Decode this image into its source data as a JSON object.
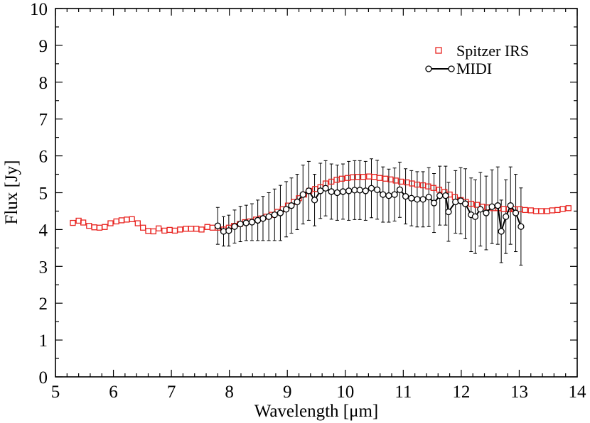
{
  "chart_data": {
    "type": "scatter",
    "xlabel": "Wavelength [μm]",
    "ylabel": "Flux [Jy]",
    "xlim": [
      5,
      14
    ],
    "ylim": [
      0,
      10
    ],
    "x_ticks": [
      "5",
      "6",
      "7",
      "8",
      "9",
      "10",
      "11",
      "12",
      "13",
      "14"
    ],
    "y_ticks": [
      "0",
      "1",
      "2",
      "3",
      "4",
      "5",
      "6",
      "7",
      "8",
      "9",
      "10"
    ],
    "legend": {
      "placement": "top-right"
    },
    "series": [
      {
        "name": "Spitzer IRS",
        "style": "open-square",
        "color": "#e8231f",
        "x": [
          5.3,
          5.4,
          5.48,
          5.58,
          5.67,
          5.76,
          5.85,
          5.95,
          6.05,
          6.14,
          6.23,
          6.32,
          6.42,
          6.51,
          6.6,
          6.69,
          6.78,
          6.88,
          6.97,
          7.06,
          7.15,
          7.25,
          7.34,
          7.43,
          7.52,
          7.62,
          7.71,
          7.8,
          7.9,
          7.99,
          8.08,
          8.18,
          8.27,
          8.36,
          8.46,
          8.55,
          8.64,
          8.73,
          8.83,
          8.92,
          9.01,
          9.11,
          9.2,
          9.29,
          9.38,
          9.48,
          9.57,
          9.66,
          9.76,
          9.85,
          9.94,
          10.04,
          10.13,
          10.22,
          10.31,
          10.41,
          10.5,
          10.59,
          10.69,
          10.78,
          10.87,
          10.96,
          11.06,
          11.15,
          11.24,
          11.34,
          11.43,
          11.52,
          11.62,
          11.71,
          11.8,
          11.89,
          11.99,
          12.08,
          12.17,
          12.27,
          12.36,
          12.45,
          12.55,
          12.64,
          12.73,
          12.82,
          12.92,
          13.01,
          13.1,
          13.2,
          13.29,
          13.38,
          13.48,
          13.57,
          13.66,
          13.75,
          13.85
        ],
        "y": [
          4.18,
          4.24,
          4.19,
          4.1,
          4.06,
          4.05,
          4.07,
          4.17,
          4.22,
          4.25,
          4.27,
          4.28,
          4.17,
          4.05,
          3.96,
          3.95,
          4.03,
          3.97,
          3.99,
          3.97,
          4.0,
          4.02,
          4.02,
          4.02,
          4.0,
          4.07,
          4.05,
          4.05,
          4.0,
          4.05,
          4.1,
          4.15,
          4.2,
          4.22,
          4.27,
          4.3,
          4.35,
          4.4,
          4.48,
          4.55,
          4.65,
          4.75,
          4.85,
          4.95,
          5.05,
          5.1,
          5.15,
          5.25,
          5.3,
          5.35,
          5.38,
          5.4,
          5.42,
          5.43,
          5.43,
          5.44,
          5.43,
          5.4,
          5.38,
          5.36,
          5.33,
          5.3,
          5.28,
          5.25,
          5.22,
          5.2,
          5.17,
          5.13,
          5.08,
          5.02,
          4.95,
          4.88,
          4.8,
          4.75,
          4.7,
          4.67,
          4.62,
          4.6,
          4.58,
          4.58,
          4.56,
          4.55,
          4.55,
          4.55,
          4.53,
          4.52,
          4.5,
          4.5,
          4.5,
          4.52,
          4.53,
          4.56,
          4.58
        ]
      },
      {
        "name": "MIDI",
        "style": "line-open-circle",
        "color": "#000000",
        "x": [
          7.8,
          7.9,
          7.99,
          8.09,
          8.19,
          8.29,
          8.39,
          8.49,
          8.58,
          8.68,
          8.78,
          8.88,
          8.98,
          9.07,
          9.17,
          9.27,
          9.37,
          9.47,
          9.57,
          9.66,
          9.76,
          9.86,
          9.96,
          10.06,
          10.16,
          10.25,
          10.35,
          10.45,
          10.55,
          10.65,
          10.75,
          10.85,
          10.94,
          11.04,
          11.14,
          11.24,
          11.34,
          11.44,
          11.53,
          11.63,
          11.73,
          11.78,
          11.9,
          11.99,
          12.07,
          12.17,
          12.24,
          12.33,
          12.43,
          12.53,
          12.63,
          12.69,
          12.77,
          12.85,
          12.94,
          13.03
        ],
        "y": [
          4.1,
          3.95,
          3.97,
          4.08,
          4.15,
          4.18,
          4.2,
          4.25,
          4.3,
          4.35,
          4.4,
          4.45,
          4.55,
          4.65,
          4.75,
          4.95,
          5.05,
          4.8,
          5.05,
          5.12,
          5.03,
          5.0,
          5.03,
          5.05,
          5.07,
          5.07,
          5.05,
          5.12,
          5.08,
          4.95,
          4.92,
          4.95,
          5.08,
          4.9,
          4.85,
          4.82,
          4.82,
          4.88,
          4.72,
          4.92,
          4.92,
          4.48,
          4.75,
          4.78,
          4.7,
          4.4,
          4.35,
          4.55,
          4.45,
          4.62,
          4.65,
          3.95,
          4.35,
          4.65,
          4.45,
          4.08
        ],
        "error": [
          0.5,
          0.4,
          0.42,
          0.45,
          0.48,
          0.48,
          0.5,
          0.55,
          0.6,
          0.65,
          0.7,
          0.75,
          0.75,
          0.75,
          0.75,
          0.8,
          0.8,
          0.7,
          0.75,
          0.75,
          0.75,
          0.75,
          0.75,
          0.8,
          0.8,
          0.8,
          0.8,
          0.8,
          0.8,
          0.75,
          0.72,
          0.72,
          0.75,
          0.75,
          0.75,
          0.75,
          0.75,
          0.8,
          0.8,
          0.8,
          0.8,
          0.8,
          0.85,
          0.9,
          0.95,
          1.0,
          1.0,
          1.0,
          1.0,
          1.0,
          1.05,
          0.85,
          1.0,
          1.05,
          1.05,
          1.05
        ]
      }
    ]
  }
}
